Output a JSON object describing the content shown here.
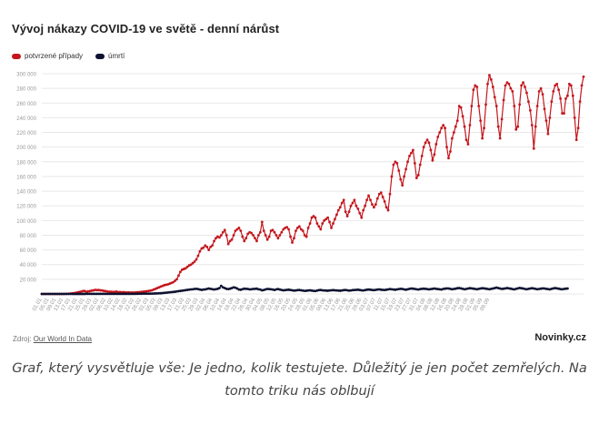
{
  "title": "Vývoj nákazy COVID-19 ve světě - denní nárůst",
  "source_label": "Zdroj:",
  "source_link": "Our World In Data",
  "brand": "Novinky.cz",
  "caption": "Graf, který vysvětluje vše: Je jedno, kolik testujete. Důležitý je jen počet zemřelých. Na tomto triku nás oblbují",
  "colors": {
    "cases": "#c4161c",
    "deaths": "#0d1230",
    "grid": "#e8e8e8",
    "tick": "#999999"
  },
  "chart_data": {
    "type": "line",
    "title": "Vývoj nákazy COVID-19 ve světě - denní nárůst",
    "ylim": [
      0,
      300000
    ],
    "yticks": [
      0,
      20000,
      40000,
      60000,
      80000,
      100000,
      120000,
      140000,
      160000,
      180000,
      200000,
      220000,
      240000,
      260000,
      280000,
      300000
    ],
    "ytick_labels": [
      "",
      "20 000",
      "40 000",
      "60 000",
      "80 000",
      "100 000",
      "120 000",
      "140 000",
      "160 000",
      "180 000",
      "200 000",
      "220 000",
      "240 000",
      "260 000",
      "280 000",
      "300 000"
    ],
    "x_start": "2020-01-01",
    "x_end": "2020-09-10",
    "x_tick_labels": [
      "01.01",
      "05.01",
      "09.01",
      "13.01",
      "17.01",
      "21.01",
      "25.01",
      "29.01",
      "02.02",
      "06.02",
      "10.02",
      "14.02",
      "18.02",
      "22.02",
      "26.02",
      "01.03",
      "05.03",
      "09.03",
      "13.03",
      "17.03",
      "21.03",
      "25.03",
      "29.03",
      "02.04",
      "06.04",
      "10.04",
      "14.04",
      "18.04",
      "22.04",
      "26.04",
      "30.04",
      "04.05",
      "08.05",
      "12.05",
      "16.05",
      "20.05",
      "24.05",
      "28.05",
      "01.06",
      "05.06",
      "09.06",
      "13.06",
      "17.06",
      "21.06",
      "25.06",
      "29.06",
      "03.07",
      "07.07",
      "11.07",
      "15.07",
      "19.07",
      "23.07",
      "27.07",
      "31.07",
      "04.08",
      "08.08",
      "12.08",
      "16.08",
      "20.08",
      "24.08",
      "28.08",
      "01.09",
      "05.09",
      "09.09"
    ],
    "grid": true,
    "legend_position": "top-left",
    "x_label_interval_days": 4,
    "series": [
      {
        "name": "potvrzené případy",
        "color": "#c4161c",
        "values": [
          0,
          0,
          0,
          0,
          0,
          0,
          0,
          0,
          0,
          0,
          0,
          0,
          0,
          100,
          200,
          300,
          500,
          700,
          1000,
          1500,
          2000,
          2600,
          3100,
          3900,
          4200,
          3000,
          3600,
          3900,
          4500,
          4800,
          5500,
          5200,
          5400,
          5000,
          4800,
          4100,
          3800,
          3300,
          3100,
          2900,
          2800,
          2700,
          3200,
          2500,
          2600,
          2300,
          2400,
          2100,
          2000,
          2100,
          1900,
          2000,
          1900,
          2100,
          2300,
          2500,
          2700,
          3000,
          3400,
          3700,
          4000,
          4500,
          5000,
          6000,
          7000,
          8000,
          9000,
          10000,
          11000,
          12000,
          12500,
          13000,
          14000,
          15000,
          16000,
          18000,
          20000,
          25000,
          30000,
          33000,
          34000,
          35000,
          37000,
          39000,
          40000,
          42000,
          44000,
          47000,
          52000,
          58000,
          62000,
          63000,
          66000,
          64000,
          60000,
          64000,
          66000,
          72000,
          76000,
          78000,
          77000,
          80000,
          84000,
          87000,
          80000,
          68000,
          72000,
          74000,
          80000,
          86000,
          88000,
          90000,
          86000,
          78000,
          72000,
          76000,
          82000,
          84000,
          83000,
          80000,
          76000,
          72000,
          80000,
          84000,
          98000,
          86000,
          80000,
          74000,
          78000,
          86000,
          87000,
          84000,
          80000,
          76000,
          80000,
          84000,
          88000,
          90000,
          91000,
          88000,
          78000,
          70000,
          76000,
          86000,
          90000,
          92000,
          88000,
          86000,
          80000,
          78000,
          90000,
          96000,
          104000,
          106000,
          104000,
          96000,
          92000,
          88000,
          96000,
          100000,
          102000,
          104000,
          98000,
          90000,
          96000,
          102000,
          108000,
          114000,
          118000,
          124000,
          128000,
          112000,
          106000,
          112000,
          120000,
          124000,
          128000,
          120000,
          116000,
          110000,
          104000,
          114000,
          120000,
          128000,
          134000,
          128000,
          122000,
          118000,
          122000,
          130000,
          136000,
          138000,
          132000,
          126000,
          118000,
          114000,
          136000,
          160000,
          176000,
          180000,
          178000,
          168000,
          156000,
          148000,
          160000,
          170000,
          180000,
          188000,
          192000,
          196000,
          178000,
          158000,
          162000,
          176000,
          188000,
          200000,
          206000,
          210000,
          206000,
          196000,
          182000,
          190000,
          204000,
          214000,
          220000,
          226000,
          230000,
          226000,
          200000,
          185000,
          194000,
          212000,
          220000,
          228000,
          236000,
          256000,
          254000,
          242000,
          228000,
          210000,
          204000,
          230000,
          256000,
          278000,
          284000,
          282000,
          256000,
          236000,
          212000,
          226000,
          258000,
          286000,
          298000,
          292000,
          282000,
          268000,
          256000,
          228000,
          212000,
          238000,
          264000,
          284000,
          288000,
          286000,
          280000,
          276000,
          256000,
          224000,
          228000,
          258000,
          284000,
          288000,
          282000,
          274000,
          262000,
          250000,
          230000,
          198000,
          228000,
          256000,
          276000,
          280000,
          272000,
          252000,
          236000,
          218000,
          240000,
          262000,
          276000,
          284000,
          286000,
          278000,
          266000,
          246000,
          246000,
          266000,
          270000,
          286000,
          284000,
          270000,
          240000,
          210000,
          226000,
          262000,
          284000,
          296000
        ]
      },
      {
        "name": "úmrtí",
        "color": "#0d1230",
        "values": [
          0,
          0,
          0,
          0,
          0,
          0,
          0,
          0,
          0,
          0,
          0,
          0,
          0,
          0,
          0,
          0,
          0,
          0,
          20,
          30,
          40,
          50,
          60,
          70,
          80,
          90,
          100,
          100,
          110,
          120,
          120,
          130,
          140,
          130,
          140,
          150,
          130,
          120,
          110,
          100,
          110,
          120,
          130,
          140,
          130,
          140,
          150,
          160,
          150,
          140,
          150,
          160,
          170,
          200,
          250,
          300,
          350,
          400,
          450,
          500,
          500,
          500,
          400,
          600,
          700,
          800,
          900,
          1000,
          1200,
          1500,
          1700,
          2000,
          2300,
          2500,
          2800,
          3000,
          3400,
          3800,
          4100,
          4500,
          4800,
          5200,
          5500,
          5900,
          6200,
          6400,
          6800,
          7000,
          6600,
          6000,
          5500,
          6000,
          6200,
          6800,
          7400,
          7000,
          6500,
          6000,
          6500,
          7000,
          8000,
          11000,
          9000,
          8000,
          7000,
          6600,
          7200,
          8000,
          9000,
          8500,
          7400,
          6000,
          5800,
          6500,
          7200,
          7000,
          6800,
          6200,
          6400,
          6800,
          7000,
          7200,
          6400,
          6000,
          5000,
          5400,
          6200,
          6800,
          6600,
          6400,
          6000,
          5400,
          6200,
          6600,
          6000,
          5400,
          5000,
          5200,
          5600,
          5800,
          5400,
          5000,
          4600,
          4800,
          5200,
          5400,
          5000,
          4600,
          4200,
          4400,
          4800,
          5000,
          4600,
          4200,
          4000,
          4600,
          5200,
          5400,
          5000,
          4800,
          4600,
          4400,
          4800,
          5000,
          5200,
          5000,
          4800,
          4600,
          4400,
          4800,
          5200,
          5400,
          5000,
          4600,
          4800,
          5200,
          5400,
          5600,
          5800,
          5400,
          5000,
          4800,
          5200,
          5800,
          6000,
          5800,
          5400,
          5200,
          5600,
          6000,
          6200,
          5800,
          5600,
          5400,
          5800,
          6200,
          6600,
          6400,
          6000,
          5800,
          6200,
          6600,
          7000,
          6800,
          6200,
          5800,
          6400,
          7000,
          7400,
          7200,
          6800,
          6400,
          6000,
          6600,
          7000,
          7200,
          7000,
          6600,
          6200,
          6600,
          7000,
          7400,
          7000,
          6600,
          6400,
          6000,
          6800,
          7200,
          7600,
          7400,
          7000,
          6400,
          6800,
          7200,
          7800,
          8000,
          7600,
          7000,
          6400,
          6800,
          7400,
          7800,
          7600,
          7200,
          6800,
          6400,
          7000,
          7400,
          7800,
          7600,
          7200,
          6800,
          6400,
          7000,
          7400,
          8000,
          8600,
          8000,
          7400,
          6800,
          7200,
          7600,
          8000,
          7600,
          7200,
          6600,
          6200,
          7000,
          7600,
          8200,
          7800,
          7400,
          6800,
          6400,
          7000,
          7400,
          7800,
          7400,
          7000,
          6400,
          6800,
          7200,
          7600,
          7400,
          7000,
          6600,
          6200,
          7000,
          7600,
          8000,
          7600,
          7200,
          6600,
          6400,
          6800,
          7200,
          7400
        ]
      }
    ]
  }
}
